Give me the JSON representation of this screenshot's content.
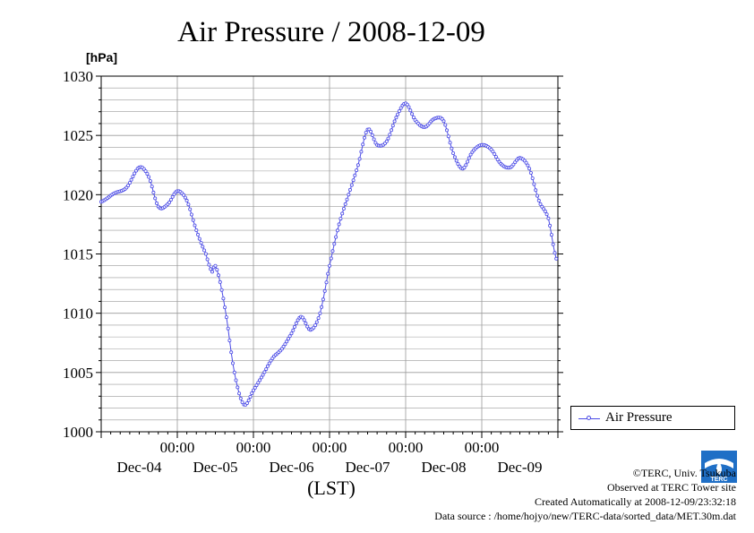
{
  "colors": {
    "series": "#4a4ae6",
    "grid": "#9a9a9a",
    "axis": "#000000",
    "background": "#ffffff"
  },
  "chart_data": {
    "type": "line",
    "title": "Air Pressure / 2008-12-09",
    "ylabel": "[hPa]",
    "xlabel": "(LST)",
    "ylim": [
      1000,
      1030
    ],
    "yticks": [
      1000,
      1005,
      1010,
      1015,
      1020,
      1025,
      1030
    ],
    "xlim_days": [
      0,
      6
    ],
    "x_time_labels": [
      "00:00",
      "00:00",
      "00:00",
      "00:00",
      "00:00"
    ],
    "x_date_labels": [
      "Dec-04",
      "Dec-05",
      "Dec-06",
      "Dec-07",
      "Dec-08",
      "Dec-09"
    ],
    "grid": true,
    "legend": "right",
    "series": [
      {
        "name": "Air Pressure",
        "x": [
          "2008-12-04 00:00",
          "2008-12-04 04:00",
          "2008-12-04 08:00",
          "2008-12-04 12:00",
          "2008-12-04 15:00",
          "2008-12-04 18:00",
          "2008-12-04 21:00",
          "2008-12-05 00:00",
          "2008-12-05 03:00",
          "2008-12-05 06:00",
          "2008-12-05 09:00",
          "2008-12-05 11:00",
          "2008-12-05 12:00",
          "2008-12-05 15:00",
          "2008-12-05 18:00",
          "2008-12-05 21:00",
          "2008-12-06 00:00",
          "2008-12-06 03:00",
          "2008-12-06 06:00",
          "2008-12-06 09:00",
          "2008-12-06 12:00",
          "2008-12-06 15:00",
          "2008-12-06 18:00",
          "2008-12-06 21:00",
          "2008-12-07 00:00",
          "2008-12-07 03:00",
          "2008-12-07 06:00",
          "2008-12-07 09:00",
          "2008-12-07 12:00",
          "2008-12-07 15:00",
          "2008-12-07 18:00",
          "2008-12-07 21:00",
          "2008-12-08 00:00",
          "2008-12-08 03:00",
          "2008-12-08 06:00",
          "2008-12-08 09:00",
          "2008-12-08 12:00",
          "2008-12-08 15:00",
          "2008-12-08 18:00",
          "2008-12-08 21:00",
          "2008-12-09 00:00",
          "2008-12-09 03:00",
          "2008-12-09 06:00",
          "2008-12-09 09:00",
          "2008-12-09 12:00",
          "2008-12-09 15:00",
          "2008-12-09 18:00",
          "2008-12-09 21:00",
          "2008-12-09 23:30"
        ],
        "values": [
          1019.4,
          1020.1,
          1020.6,
          1022.3,
          1021.5,
          1019.0,
          1019.2,
          1020.3,
          1019.5,
          1017.0,
          1015.0,
          1013.5,
          1014.0,
          1010.5,
          1005.0,
          1002.3,
          1003.5,
          1004.8,
          1006.2,
          1007.0,
          1008.3,
          1009.7,
          1008.6,
          1010.0,
          1014.0,
          1017.5,
          1020.0,
          1022.5,
          1025.5,
          1024.2,
          1024.5,
          1026.5,
          1027.7,
          1026.3,
          1025.7,
          1026.4,
          1026.2,
          1023.5,
          1022.2,
          1023.6,
          1024.2,
          1023.8,
          1022.6,
          1022.3,
          1023.1,
          1022.2,
          1019.5,
          1018.0,
          1014.6
        ]
      }
    ]
  },
  "credits": {
    "copyright": "©TERC, Univ. Tsukuba",
    "observed": "Observed at TERC Tower site",
    "created": "Created Automatically at 2008-12-09/23:32:18",
    "source": "Data source : /home/hojyo/new/TERC-data/sorted_data/MET.30m.dat"
  },
  "logo_text": "TERC"
}
